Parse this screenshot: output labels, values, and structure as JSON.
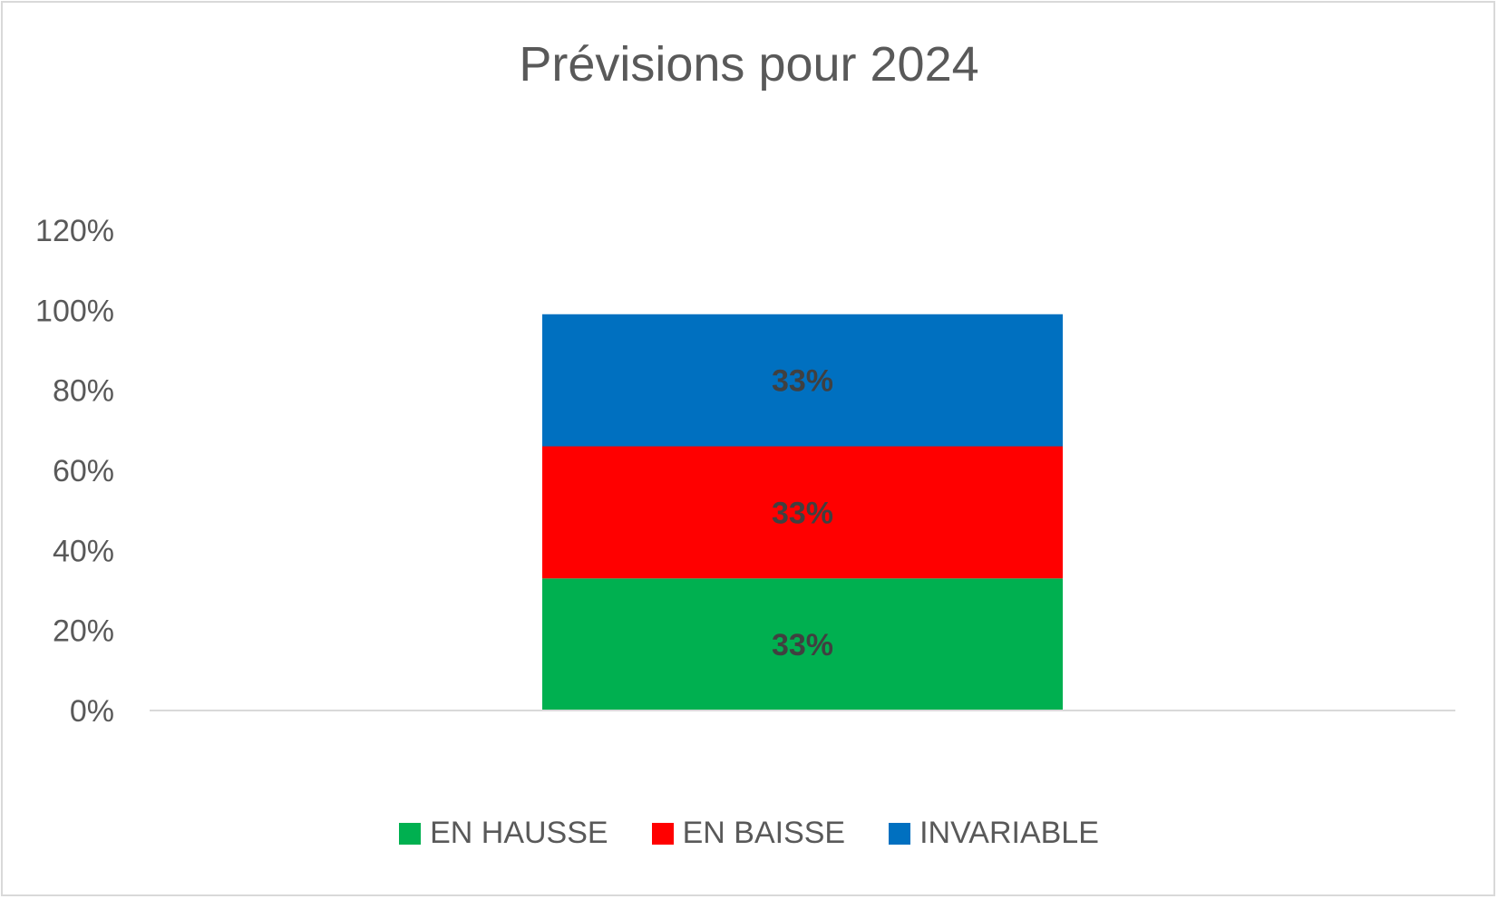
{
  "chart_data": {
    "type": "bar",
    "stacked": true,
    "title": "Prévisions pour 2024",
    "xlabel": "",
    "ylabel": "",
    "ylim": [
      0,
      1.2
    ],
    "y_ticks": [
      "0%",
      "20%",
      "40%",
      "60%",
      "80%",
      "100%",
      "120%"
    ],
    "y_tick_values": [
      0,
      0.2,
      0.4,
      0.6,
      0.8,
      1.0,
      1.2
    ],
    "categories": [
      ""
    ],
    "series": [
      {
        "name": "EN HAUSSE",
        "values": [
          0.33
        ],
        "label": "33%",
        "color": "#00b050"
      },
      {
        "name": "EN BAISSE",
        "values": [
          0.33
        ],
        "label": "33%",
        "color": "#ff0000"
      },
      {
        "name": "INVARIABLE",
        "values": [
          0.33
        ],
        "label": "33%",
        "color": "#0070c0"
      }
    ],
    "grid": false,
    "legend_position": "bottom"
  }
}
